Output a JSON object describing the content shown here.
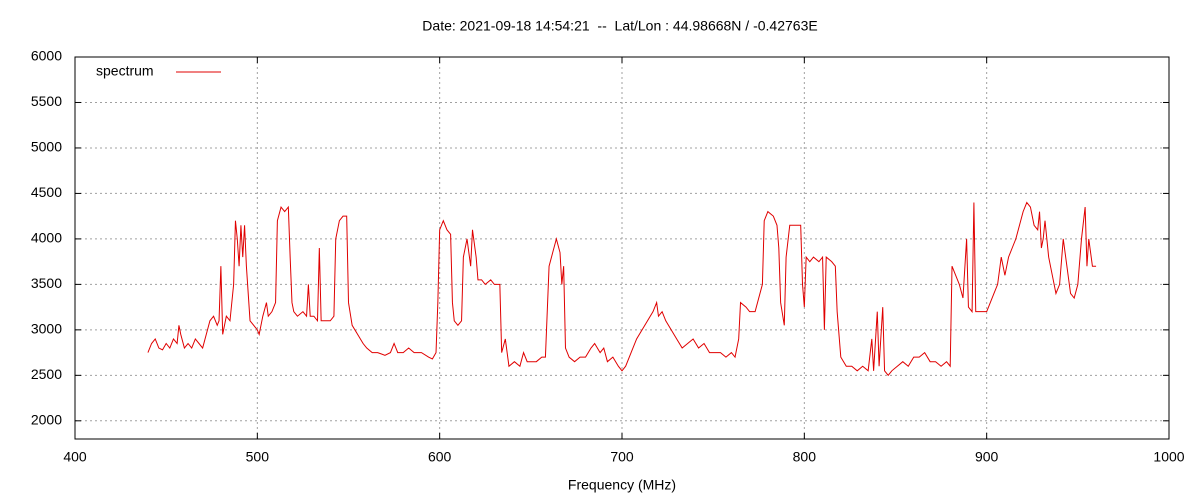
{
  "chart_data": {
    "type": "line",
    "title": "Date: 2021-09-18 14:54:21  --  Lat/Lon : 44.98668N / -0.42763E",
    "x_label": "Frequency (MHz)",
    "legend": "top-left",
    "grid": true,
    "xlim": [
      400,
      1000
    ],
    "ylim": [
      1800,
      6000
    ],
    "xticks": [
      400,
      500,
      600,
      700,
      800,
      900,
      1000
    ],
    "yticks": [
      2000,
      2500,
      3000,
      3500,
      4000,
      4500,
      5000,
      5500,
      6000
    ],
    "x": [
      440,
      442,
      444,
      446,
      448,
      450,
      452,
      454,
      456,
      457,
      458,
      460,
      462,
      464,
      466,
      468,
      470,
      472,
      474,
      476,
      478,
      479,
      480,
      481,
      483,
      485,
      487,
      488,
      489,
      490,
      491,
      492,
      493,
      494,
      496,
      498,
      500,
      501,
      503,
      505,
      506,
      508,
      510,
      511,
      513,
      515,
      517,
      518,
      519,
      520,
      522,
      525,
      527,
      528,
      529,
      531,
      533,
      534,
      535,
      537,
      540,
      542,
      543,
      545,
      547,
      549,
      550,
      552,
      555,
      558,
      560,
      563,
      566,
      570,
      573,
      575,
      577,
      580,
      583,
      586,
      590,
      594,
      596,
      598,
      599,
      600,
      602,
      604,
      606,
      607,
      608,
      610,
      612,
      613,
      615,
      617,
      618,
      620,
      621,
      623,
      625,
      628,
      630,
      633,
      634,
      636,
      638,
      641,
      644,
      646,
      648,
      650,
      653,
      656,
      658,
      660,
      662,
      664,
      666,
      667,
      668,
      669,
      671,
      674,
      677,
      680,
      683,
      685,
      688,
      690,
      692,
      695,
      698,
      700,
      702,
      705,
      708,
      711,
      714,
      717,
      719,
      720,
      722,
      724,
      727,
      730,
      733,
      736,
      739,
      742,
      745,
      748,
      751,
      754,
      757,
      760,
      762,
      764,
      765,
      768,
      770,
      773,
      775,
      777,
      778,
      780,
      783,
      785,
      786,
      787,
      789,
      790,
      792,
      795,
      798,
      799,
      800,
      801,
      803,
      805,
      808,
      810,
      811,
      812,
      815,
      817,
      818,
      820,
      823,
      826,
      829,
      832,
      835,
      837,
      838,
      840,
      841,
      843,
      844,
      846,
      848,
      851,
      854,
      857,
      860,
      863,
      866,
      869,
      872,
      875,
      878,
      880,
      881,
      883,
      885,
      887,
      889,
      890,
      892,
      893,
      894,
      896,
      898,
      900,
      902,
      904,
      906,
      908,
      910,
      912,
      914,
      916,
      918,
      920,
      922,
      924,
      926,
      928,
      929,
      930,
      931,
      932,
      934,
      936,
      938,
      940,
      942,
      944,
      946,
      948,
      950,
      952,
      954,
      955,
      956,
      958,
      960
    ],
    "series": [
      {
        "name": "spectrum",
        "color": "#e00000",
        "values": [
          2750,
          2850,
          2900,
          2800,
          2780,
          2850,
          2800,
          2900,
          2850,
          3050,
          2950,
          2800,
          2850,
          2800,
          2900,
          2850,
          2800,
          2950,
          3100,
          3150,
          3050,
          3100,
          3700,
          2950,
          3150,
          3100,
          3500,
          4200,
          4000,
          3700,
          4150,
          3800,
          4150,
          3700,
          3100,
          3050,
          3000,
          2950,
          3150,
          3300,
          3150,
          3200,
          3300,
          4200,
          4350,
          4300,
          4350,
          3800,
          3300,
          3200,
          3150,
          3200,
          3150,
          3500,
          3150,
          3150,
          3100,
          3900,
          3100,
          3100,
          3100,
          3150,
          4000,
          4200,
          4250,
          4250,
          3300,
          3050,
          2950,
          2850,
          2800,
          2750,
          2750,
          2720,
          2750,
          2850,
          2750,
          2750,
          2800,
          2750,
          2750,
          2700,
          2680,
          2750,
          3300,
          4100,
          4200,
          4100,
          4050,
          3300,
          3100,
          3050,
          3100,
          3800,
          4000,
          3700,
          4100,
          3800,
          3550,
          3550,
          3500,
          3550,
          3500,
          3500,
          2750,
          2900,
          2600,
          2650,
          2600,
          2750,
          2650,
          2650,
          2650,
          2700,
          2700,
          3700,
          3850,
          4000,
          3850,
          3500,
          3700,
          2800,
          2700,
          2650,
          2700,
          2700,
          2800,
          2850,
          2750,
          2800,
          2650,
          2700,
          2600,
          2550,
          2600,
          2750,
          2900,
          3000,
          3100,
          3200,
          3300,
          3150,
          3200,
          3100,
          3000,
          2900,
          2800,
          2850,
          2900,
          2800,
          2850,
          2750,
          2750,
          2750,
          2700,
          2750,
          2700,
          2900,
          3300,
          3250,
          3200,
          3200,
          3350,
          3500,
          4200,
          4300,
          4250,
          4150,
          3900,
          3300,
          3050,
          3800,
          4150,
          4150,
          4150,
          3500,
          3250,
          3800,
          3750,
          3800,
          3750,
          3800,
          3000,
          3800,
          3750,
          3700,
          3200,
          2700,
          2600,
          2600,
          2550,
          2600,
          2550,
          2900,
          2550,
          3200,
          2600,
          3250,
          2550,
          2500,
          2550,
          2600,
          2650,
          2600,
          2700,
          2700,
          2750,
          2650,
          2650,
          2600,
          2650,
          2600,
          3700,
          3600,
          3500,
          3350,
          4000,
          3250,
          3200,
          4400,
          3200,
          3200,
          3200,
          3200,
          3300,
          3400,
          3500,
          3800,
          3600,
          3800,
          3900,
          4000,
          4150,
          4300,
          4400,
          4350,
          4150,
          4100,
          4300,
          3900,
          4000,
          4200,
          3800,
          3600,
          3400,
          3500,
          4000,
          3700,
          3400,
          3350,
          3500,
          4000,
          4350,
          3700,
          4000,
          3700,
          3700
        ]
      }
    ]
  }
}
